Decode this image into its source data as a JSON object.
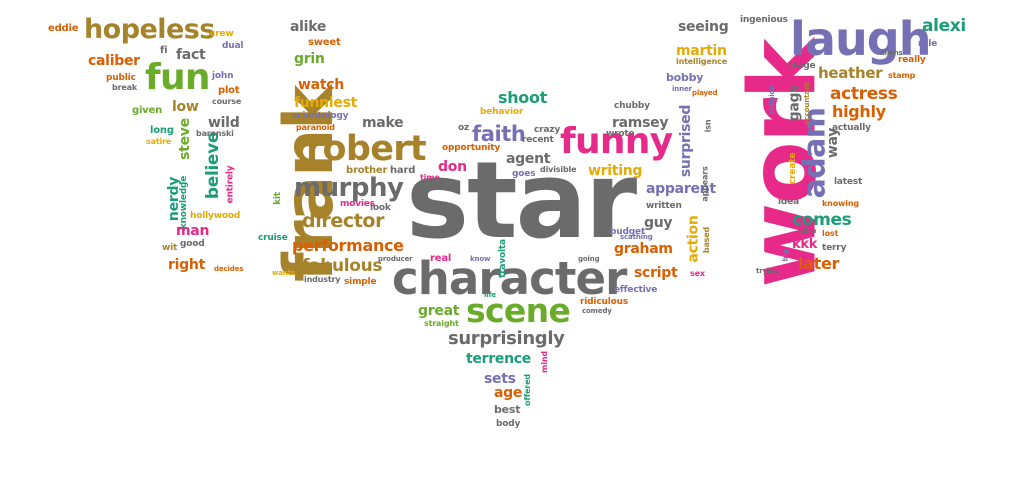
{
  "colors": {
    "gray": "#6b6b6b",
    "olive": "#a6832a",
    "green": "#6aab2a",
    "pink": "#e7298a",
    "purple": "#7570b3",
    "teal": "#1b9e77",
    "orange": "#d95f02",
    "gold": "#e6ab02"
  },
  "words": [
    "star",
    "character",
    "frank",
    "work",
    "laugh",
    "hopeless",
    "fun",
    "funny",
    "robert",
    "scene",
    "murphy",
    "adam",
    "faith",
    "alexi",
    "surprisingly",
    "director",
    "performance",
    "fabulous",
    "believe",
    "shoot",
    "actress",
    "heather",
    "comes",
    "later",
    "highly",
    "terrence",
    "grin",
    "watch",
    "funniest",
    "alike",
    "eddie",
    "crew",
    "fi",
    "fact",
    "sweet",
    "dual",
    "caliber",
    "public",
    "break",
    "john",
    "plot",
    "course",
    "given",
    "low",
    "long",
    "satire",
    "steve",
    "wild",
    "baranski",
    "scientology",
    "paranoid",
    "make",
    "oz",
    "crazy",
    "recent",
    "opportunity",
    "don",
    "brother",
    "hard",
    "time",
    "movies",
    "look",
    "agent",
    "divisible",
    "goes",
    "writing",
    "ramsey",
    "wrote",
    "nerdy",
    "knowledge",
    "entirely",
    "kit",
    "hollywood",
    "man",
    "wit",
    "good",
    "cruise",
    "right",
    "decides",
    "wants",
    "industry",
    "simple",
    "producer",
    "real",
    "know",
    "travolta",
    "going",
    "budget",
    "scathing",
    "graham",
    "guy",
    "written",
    "apparent",
    "surprised",
    "isn",
    "appears",
    "action",
    "based",
    "effective",
    "script",
    "sex",
    "ridiculous",
    "comedy",
    "great",
    "straight",
    "life",
    "sets",
    "age",
    "offered",
    "mind",
    "best",
    "body",
    "seeing",
    "ingenious",
    "martin",
    "intelligence",
    "bobby",
    "inner",
    "played",
    "chubby",
    "behavior",
    "gags",
    "accountant",
    "religion",
    "stage",
    "aliens",
    "role",
    "really",
    "stamp",
    "way",
    "actually",
    "create",
    "idea",
    "ultra",
    "knowing",
    "latest",
    "kkk",
    "terry",
    "big",
    "trying",
    "lost"
  ]
}
